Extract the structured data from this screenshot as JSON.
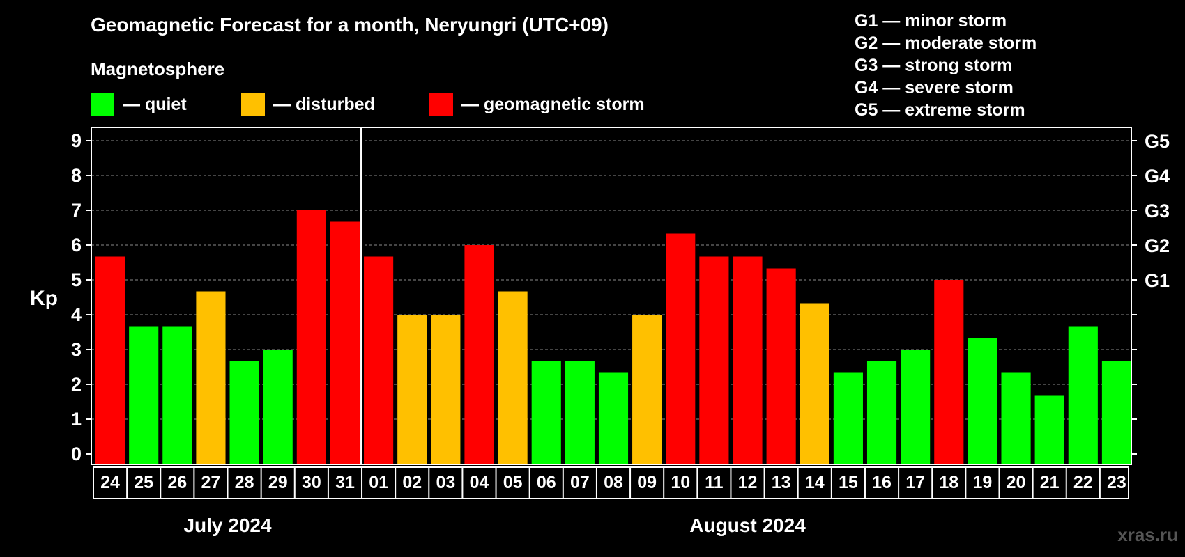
{
  "title": "Geomagnetic Forecast for a month, Neryungri (UTC+09)",
  "subtitle": "Magnetosphere",
  "legend": [
    {
      "label": "— quiet",
      "color": "#00ff00"
    },
    {
      "label": "— disturbed",
      "color": "#ffc000"
    },
    {
      "label": "— geomagnetic storm",
      "color": "#ff0000"
    }
  ],
  "gscale": [
    "G1 — minor storm",
    "G2 — moderate storm",
    "G3 — strong storm",
    "G4 — severe storm",
    "G5 — extreme storm"
  ],
  "watermark": "xras.ru",
  "chart_data": {
    "type": "bar",
    "ylabel": "Kp",
    "ylim": [
      0,
      9
    ],
    "y_ticks": [
      "0",
      "1",
      "2",
      "3",
      "4",
      "5",
      "6",
      "7",
      "8",
      "9"
    ],
    "right_ticks": [
      {
        "value": 5,
        "label": "G1"
      },
      {
        "value": 6,
        "label": "G2"
      },
      {
        "value": 7,
        "label": "G3"
      },
      {
        "value": 8,
        "label": "G4"
      },
      {
        "value": 9,
        "label": "G5"
      }
    ],
    "grid": "dashed horizontal",
    "months": [
      {
        "label": "July 2024",
        "start_index": 0,
        "count": 8
      },
      {
        "label": "August 2024",
        "start_index": 8,
        "count": 23
      }
    ],
    "categories": [
      "24",
      "25",
      "26",
      "27",
      "28",
      "29",
      "30",
      "31",
      "01",
      "02",
      "03",
      "04",
      "05",
      "06",
      "07",
      "08",
      "09",
      "10",
      "11",
      "12",
      "13",
      "14",
      "15",
      "16",
      "17",
      "18",
      "19",
      "20",
      "21",
      "22",
      "23"
    ],
    "values": [
      5.67,
      3.67,
      3.67,
      4.67,
      2.67,
      3.0,
      7.0,
      6.67,
      5.67,
      4.0,
      4.0,
      6.0,
      4.67,
      2.67,
      2.67,
      2.33,
      4.0,
      6.33,
      5.67,
      5.67,
      5.33,
      4.33,
      2.33,
      2.67,
      3.0,
      5.0,
      3.33,
      2.33,
      1.67,
      3.67,
      2.67
    ],
    "colors": {
      "quiet": "#00ff00",
      "disturbed": "#ffc000",
      "storm": "#ff0000"
    }
  }
}
